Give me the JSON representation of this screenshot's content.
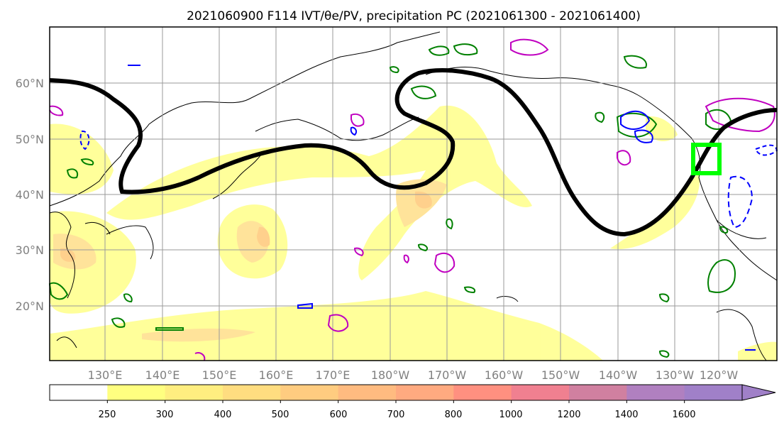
{
  "title": "2021060900 F114 IVT/θe/PV, precipitation PC (2021061300 - 2021061400)",
  "lat_labels": [
    "60°N",
    "50°N",
    "40°N",
    "30°N",
    "20°N"
  ],
  "lon_labels": [
    "130°E",
    "140°E",
    "150°E",
    "160°E",
    "170°E",
    "180°W",
    "170°W",
    "160°W",
    "150°W",
    "140°W",
    "130°W",
    "120°W"
  ],
  "colorbar": {
    "tick_labels": [
      "250",
      "300",
      "400",
      "500",
      "600",
      "700",
      "800",
      "1000",
      "1200",
      "1400",
      "1600"
    ],
    "colors": [
      "#ffffff",
      "#ffff80",
      "#ffee80",
      "#ffdd80",
      "#ffcc80",
      "#ffbb80",
      "#ffaa80",
      "#ff9080",
      "#f08090",
      "#d080a0",
      "#b080c0",
      "#a080c8"
    ]
  },
  "legend_colors": {
    "theta_e_contour": "#000000",
    "pv_positive": "#008000",
    "pv_negative": "#0000ff",
    "pv_other": "#c000c0",
    "target_box": "#00ff00"
  }
}
